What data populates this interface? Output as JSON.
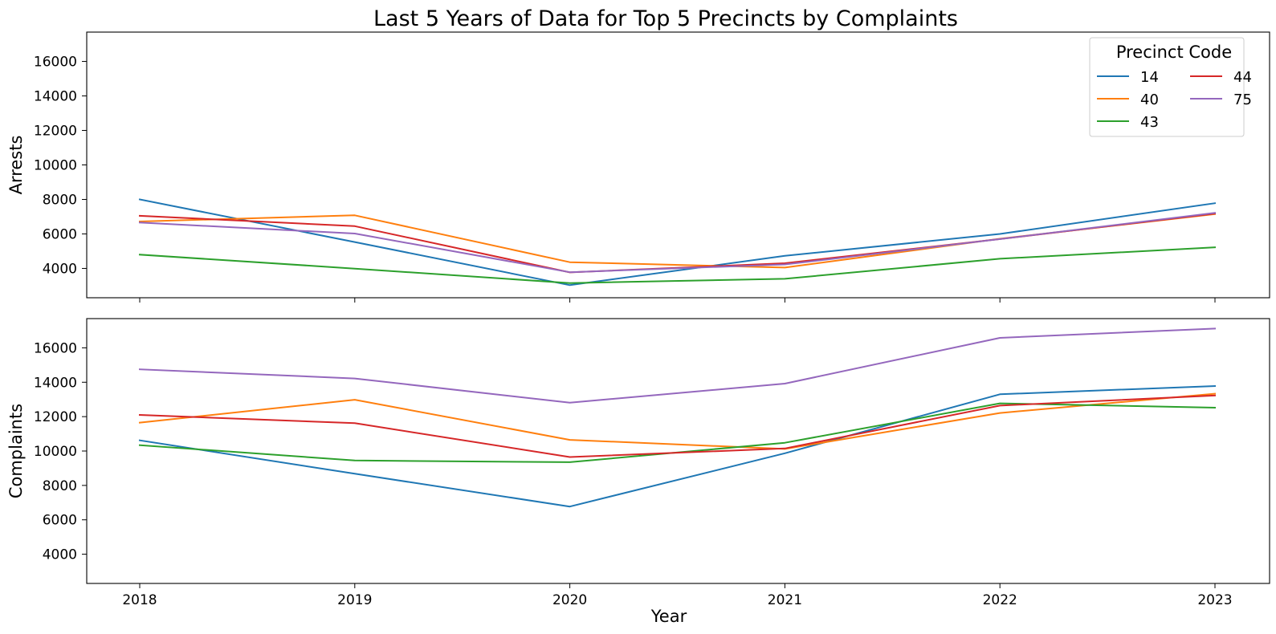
{
  "chart_data": {
    "type": "line",
    "title": "Last 5 Years of Data for Top 5 Precincts by Complaints",
    "xlabel": "Year",
    "x": [
      2018,
      2019,
      2020,
      2021,
      2022,
      2023
    ],
    "xticks": [
      "2018",
      "2019",
      "2020",
      "2021",
      "2022",
      "2023"
    ],
    "legend": {
      "title": "Precinct Code",
      "placement": "top-right",
      "ncol": 2
    },
    "series_styles": [
      {
        "name": "14",
        "color": "#1f77b4"
      },
      {
        "name": "40",
        "color": "#ff7f0e"
      },
      {
        "name": "43",
        "color": "#2ca02c"
      },
      {
        "name": "44",
        "color": "#d62728"
      },
      {
        "name": "75",
        "color": "#9467bd"
      }
    ],
    "panels": [
      {
        "id": "arrests",
        "ylabel": "Arrests",
        "ylim": [
          2300,
          17700
        ],
        "yticks": [
          4000,
          6000,
          8000,
          10000,
          12000,
          14000,
          16000
        ],
        "xtick_labels_shown": false,
        "series": [
          {
            "name": "14",
            "values": [
              8000,
              5530,
              3030,
              4730,
              6000,
              7780
            ]
          },
          {
            "name": "40",
            "values": [
              6720,
              7080,
              4360,
              4050,
              5720,
              7150
            ]
          },
          {
            "name": "43",
            "values": [
              4800,
              3990,
              3150,
              3400,
              4560,
              5220
            ]
          },
          {
            "name": "44",
            "values": [
              7050,
              6450,
              3770,
              4300,
              5700,
              7180
            ]
          },
          {
            "name": "75",
            "values": [
              6660,
              6020,
              3780,
              4230,
              5700,
              7220
            ]
          }
        ]
      },
      {
        "id": "complaints",
        "ylabel": "Complaints",
        "ylim": [
          2300,
          17700
        ],
        "yticks": [
          4000,
          6000,
          8000,
          10000,
          12000,
          14000,
          16000
        ],
        "xtick_labels_shown": true,
        "series": [
          {
            "name": "14",
            "values": [
              10620,
              8680,
              6770,
              9870,
              13300,
              13780
            ]
          },
          {
            "name": "40",
            "values": [
              11650,
              12980,
              10650,
              10120,
              12210,
              13330
            ]
          },
          {
            "name": "43",
            "values": [
              10340,
              9450,
              9350,
              10480,
              12770,
              12520
            ]
          },
          {
            "name": "44",
            "values": [
              12100,
              11620,
              9650,
              10150,
              12640,
              13230
            ]
          },
          {
            "name": "75",
            "values": [
              14750,
              14220,
              12810,
              13920,
              16580,
              17120
            ]
          }
        ]
      }
    ],
    "grid": false
  }
}
